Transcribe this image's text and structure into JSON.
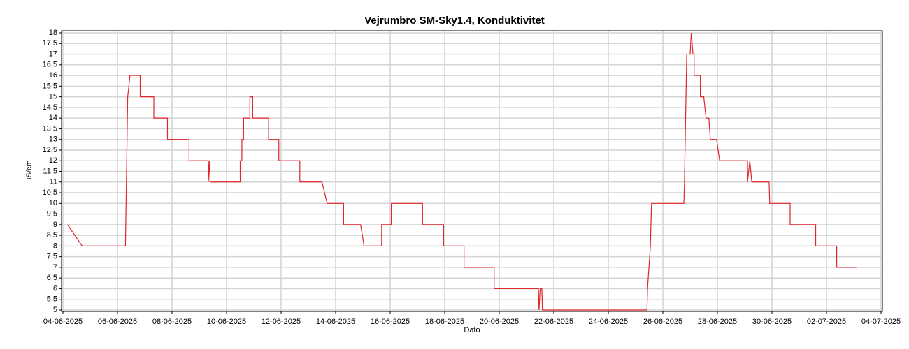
{
  "chart_data": {
    "type": "line",
    "title": "Vejrumbro SM-Sky1.4, Konduktivitet",
    "x_label": "Dato",
    "y_label": "µS/cm",
    "grid": true,
    "xlim": [
      "2025-06-04",
      "2025-07-04"
    ],
    "xticks": [
      {
        "value": "2025-06-04",
        "label": "04-06-2025"
      },
      {
        "value": "2025-06-06",
        "label": "06-06-2025"
      },
      {
        "value": "2025-06-08",
        "label": "08-06-2025"
      },
      {
        "value": "2025-06-10",
        "label": "10-06-2025"
      },
      {
        "value": "2025-06-12",
        "label": "12-06-2025"
      },
      {
        "value": "2025-06-14",
        "label": "14-06-2025"
      },
      {
        "value": "2025-06-16",
        "label": "16-06-2025"
      },
      {
        "value": "2025-06-18",
        "label": "18-06-2025"
      },
      {
        "value": "2025-06-20",
        "label": "20-06-2025"
      },
      {
        "value": "2025-06-22",
        "label": "22-06-2025"
      },
      {
        "value": "2025-06-24",
        "label": "24-06-2025"
      },
      {
        "value": "2025-06-26",
        "label": "26-06-2025"
      },
      {
        "value": "2025-06-28",
        "label": "28-06-2025"
      },
      {
        "value": "2025-06-30",
        "label": "30-06-2025"
      },
      {
        "value": "2025-07-02",
        "label": "02-07-2025"
      },
      {
        "value": "2025-07-04",
        "label": "04-07-2025"
      }
    ],
    "ylim": [
      5,
      18
    ],
    "yticks": [
      5,
      {
        "value": 5.5,
        "label": "5,5"
      },
      6,
      {
        "value": 6.5,
        "label": "6,5"
      },
      7,
      {
        "value": 7.5,
        "label": "7,5"
      },
      8,
      {
        "value": 8.5,
        "label": "8,5"
      },
      9,
      {
        "value": 9.5,
        "label": "9,5"
      },
      10,
      {
        "value": 10.5,
        "label": "10,5"
      },
      11,
      {
        "value": 11.5,
        "label": "11,5"
      },
      12,
      {
        "value": 12.5,
        "label": "12,5"
      },
      13,
      {
        "value": 13.5,
        "label": "13,5"
      },
      14,
      {
        "value": 14.5,
        "label": "14,5"
      },
      15,
      {
        "value": 15.5,
        "label": "15,5"
      },
      16,
      {
        "value": 16.5,
        "label": "16,5"
      },
      17,
      {
        "value": 17.5,
        "label": "17,5"
      },
      18
    ],
    "x": [
      "2025-06-04 04:00",
      "2025-06-04 17:00",
      "2025-06-06 07:00",
      "2025-06-06 09:00",
      "2025-06-06 11:00",
      "2025-06-06 20:00",
      "2025-06-06 20:00",
      "2025-06-07 08:00",
      "2025-06-07 08:00",
      "2025-06-07 20:00",
      "2025-06-07 20:00",
      "2025-06-08 15:00",
      "2025-06-08 15:00",
      "2025-06-09 08:00",
      "2025-06-09 08:00",
      "2025-06-09 09:00",
      "2025-06-09 09:30",
      "2025-06-10 12:00",
      "2025-06-10 12:00",
      "2025-06-10 13:30",
      "2025-06-10 13:30",
      "2025-06-10 15:00",
      "2025-06-10 15:00",
      "2025-06-10 20:30",
      "2025-06-10 20:30",
      "2025-06-10 23:00",
      "2025-06-10 23:00",
      "2025-06-11 13:00",
      "2025-06-11 13:00",
      "2025-06-11 22:00",
      "2025-06-11 22:00",
      "2025-06-12 16:30",
      "2025-06-12 16:30",
      "2025-06-13 12:00",
      "2025-06-13 16:30",
      "2025-06-14 07:00",
      "2025-06-14 07:00",
      "2025-06-14 22:00",
      "2025-06-15 01:00",
      "2025-06-15 16:30",
      "2025-06-15 16:30",
      "2025-06-16 01:00",
      "2025-06-16 01:00",
      "2025-06-17 04:30",
      "2025-06-17 04:30",
      "2025-06-17 23:00",
      "2025-06-17 23:00",
      "2025-06-18 17:00",
      "2025-06-18 17:00",
      "2025-06-19 19:30",
      "2025-06-19 19:30",
      "2025-06-21 10:30",
      "2025-06-21 11:00",
      "2025-06-21 12:00",
      "2025-06-21 13:30",
      "2025-06-21 14:00",
      "2025-06-25 10:00",
      "2025-06-25 10:30",
      "2025-06-25 13:00",
      "2025-06-25 14:00",
      "2025-06-26 18:30",
      "2025-06-26 19:00",
      "2025-06-26 21:00",
      "2025-06-27 00:00",
      "2025-06-27 01:00",
      "2025-06-27 02:30",
      "2025-06-27 03:30",
      "2025-06-27 03:30",
      "2025-06-27 09:00",
      "2025-06-27 09:00",
      "2025-06-27 12:00",
      "2025-06-27 14:00",
      "2025-06-27 16:30",
      "2025-06-27 17:45",
      "2025-06-27 23:15",
      "2025-06-28 02:00",
      "2025-06-29 02:30",
      "2025-06-29 02:30",
      "2025-06-29 04:30",
      "2025-06-29 06:15",
      "2025-06-29 21:30",
      "2025-06-29 22:00",
      "2025-06-30 16:00",
      "2025-06-30 16:00",
      "2025-07-01 14:30",
      "2025-07-01 14:30",
      "2025-07-02 09:00",
      "2025-07-02 09:00",
      "2025-07-03 02:30"
    ],
    "series": [
      {
        "name": "Konduktivitet",
        "color": "#e0252b",
        "values": [
          9,
          8,
          8,
          15,
          16,
          16,
          15,
          15,
          14,
          14,
          13,
          13,
          12,
          12,
          11,
          12,
          11,
          11,
          12,
          12,
          13,
          13,
          14,
          14,
          15,
          15,
          14,
          14,
          13,
          13,
          12,
          12,
          11,
          11,
          10,
          10,
          9,
          9,
          8,
          8,
          9,
          9,
          10,
          10,
          9,
          9,
          8,
          8,
          7,
          7,
          6,
          6,
          5,
          6,
          6,
          5,
          5,
          6,
          8,
          10,
          10,
          11,
          17,
          17,
          18,
          17,
          17,
          16,
          16,
          15,
          15,
          14,
          14,
          13,
          13,
          12,
          12,
          11,
          12,
          11,
          11,
          10,
          10,
          9,
          9,
          8,
          8,
          7,
          7
        ]
      }
    ]
  }
}
